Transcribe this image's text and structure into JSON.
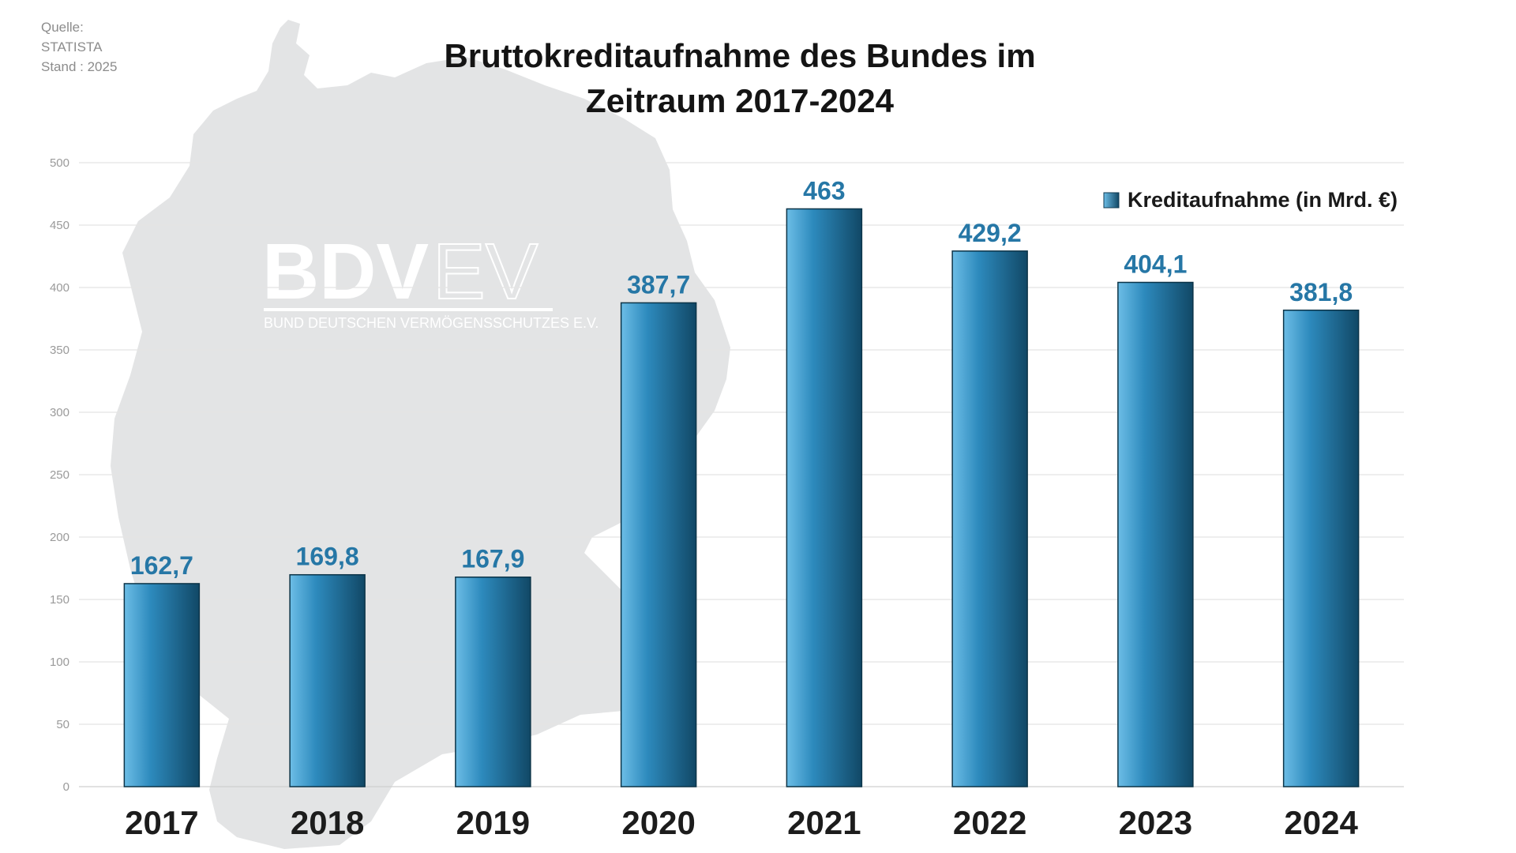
{
  "source": {
    "line1": "Quelle:",
    "line2": "STATISTA",
    "line3": "Stand : 2025"
  },
  "watermark": {
    "main": "BDV",
    "suffix": "EV",
    "subtitle": "BUND DEUTSCHEN VERMÖGENSSCHUTZES E.V."
  },
  "chart_data": {
    "type": "bar",
    "title_lines": [
      "Bruttokreditaufnahme des Bundes im",
      "Zeitraum 2017-2024"
    ],
    "categories": [
      "2017",
      "2018",
      "2019",
      "2020",
      "2021",
      "2022",
      "2023",
      "2024"
    ],
    "series": [
      {
        "name": "Kreditaufnahme (in Mrd. €)",
        "values": [
          162.7,
          169.8,
          167.9,
          387.7,
          463,
          429.2,
          404.1,
          381.8
        ],
        "labels": [
          "162,7",
          "169,8",
          "167,9",
          "387,7",
          "463",
          "429,2",
          "404,1",
          "381,8"
        ]
      }
    ],
    "ylim": [
      0,
      500
    ],
    "yticks": [
      0,
      50,
      100,
      150,
      200,
      250,
      300,
      350,
      400,
      450,
      500
    ],
    "grid": true,
    "legend_position": "top-right",
    "colors": {
      "bar_light": "#6cbde6",
      "bar_mid": "#2d8abd",
      "bar_dark": "#114866",
      "label": "#2677a6",
      "grid": "#e4e4e4",
      "map": "#e3e4e5"
    }
  }
}
